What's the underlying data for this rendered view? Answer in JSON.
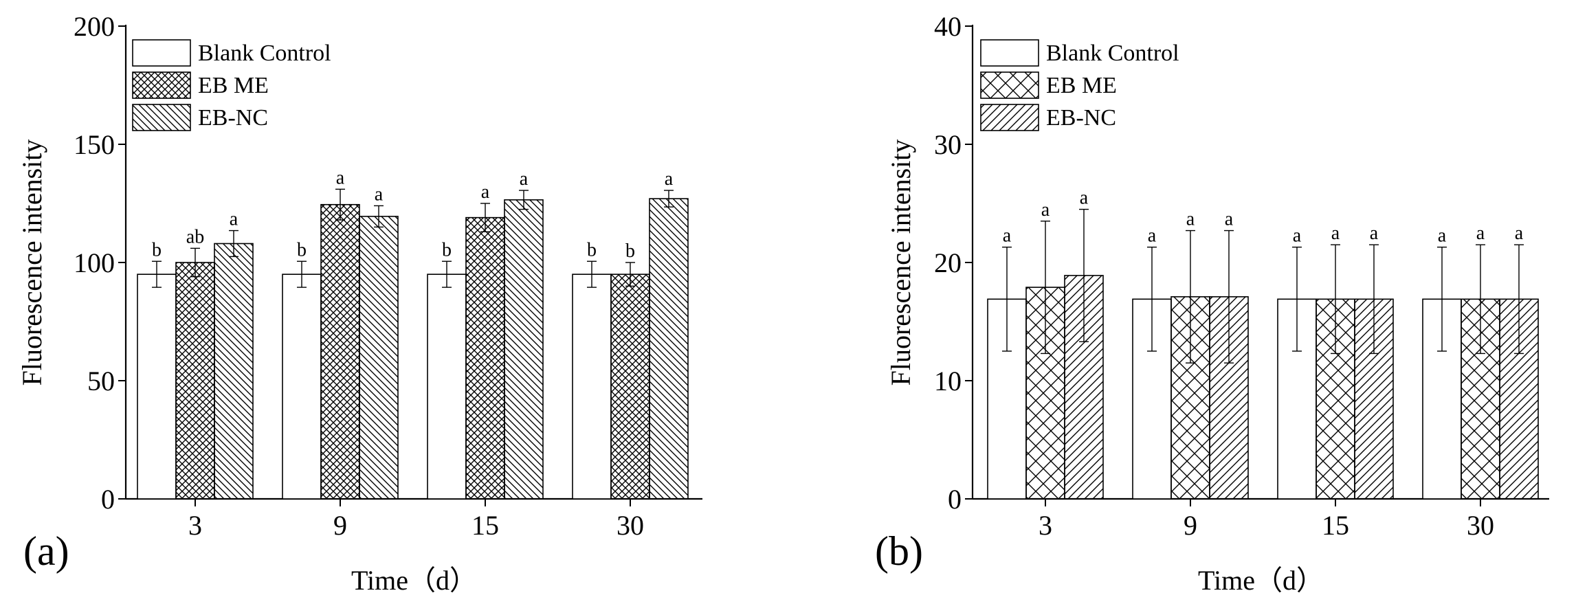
{
  "panels_meta": {
    "legend_names": [
      "Blank Control",
      "EB ME",
      "EB-NC"
    ]
  },
  "chart_data": [
    {
      "type": "bar",
      "panel_label": "(a)",
      "xlabel": "Time（d）",
      "ylabel": "Fluorescence intensity",
      "ylim": [
        0,
        200
      ],
      "yticks": [
        0,
        50,
        100,
        150,
        200
      ],
      "categories": [
        "3",
        "9",
        "15",
        "30"
      ],
      "legend_position": "top-left",
      "series": [
        {
          "name": "Blank Control",
          "pattern": "none",
          "values": [
            95,
            95,
            95,
            95
          ],
          "errors": [
            5.5,
            5.5,
            5.5,
            5.5
          ],
          "labels": [
            "b",
            "b",
            "b",
            "b"
          ]
        },
        {
          "name": "EB ME",
          "pattern": "crosshatch-dense",
          "values": [
            100,
            124.5,
            119,
            95
          ],
          "errors": [
            6,
            6.5,
            6,
            5
          ],
          "labels": [
            "ab",
            "a",
            "a",
            "b"
          ]
        },
        {
          "name": "EB-NC",
          "pattern": "backslash",
          "values": [
            108,
            119.5,
            126.5,
            127
          ],
          "errors": [
            5.5,
            4.5,
            4,
            3.5
          ],
          "labels": [
            "a",
            "a",
            "a",
            "a"
          ]
        }
      ]
    },
    {
      "type": "bar",
      "panel_label": "(b)",
      "xlabel": "Time（d）",
      "ylabel": "Fluorescence intensity",
      "ylim": [
        0,
        40
      ],
      "yticks": [
        0,
        10,
        20,
        30,
        40
      ],
      "categories": [
        "3",
        "9",
        "15",
        "30"
      ],
      "legend_position": "top-left",
      "series": [
        {
          "name": "Blank Control",
          "pattern": "none",
          "values": [
            16.9,
            16.9,
            16.9,
            16.9
          ],
          "errors": [
            4.4,
            4.4,
            4.4,
            4.4
          ],
          "labels": [
            "a",
            "a",
            "a",
            "a"
          ]
        },
        {
          "name": "EB ME",
          "pattern": "crosshatch-wide",
          "values": [
            17.9,
            17.1,
            16.9,
            16.9
          ],
          "errors": [
            5.6,
            5.6,
            4.6,
            4.6
          ],
          "labels": [
            "a",
            "a",
            "a",
            "a"
          ]
        },
        {
          "name": "EB-NC",
          "pattern": "slash",
          "values": [
            18.9,
            17.1,
            16.9,
            16.9
          ],
          "errors": [
            5.6,
            5.6,
            4.6,
            4.6
          ],
          "labels": [
            "a",
            "a",
            "a",
            "a"
          ]
        }
      ]
    }
  ]
}
